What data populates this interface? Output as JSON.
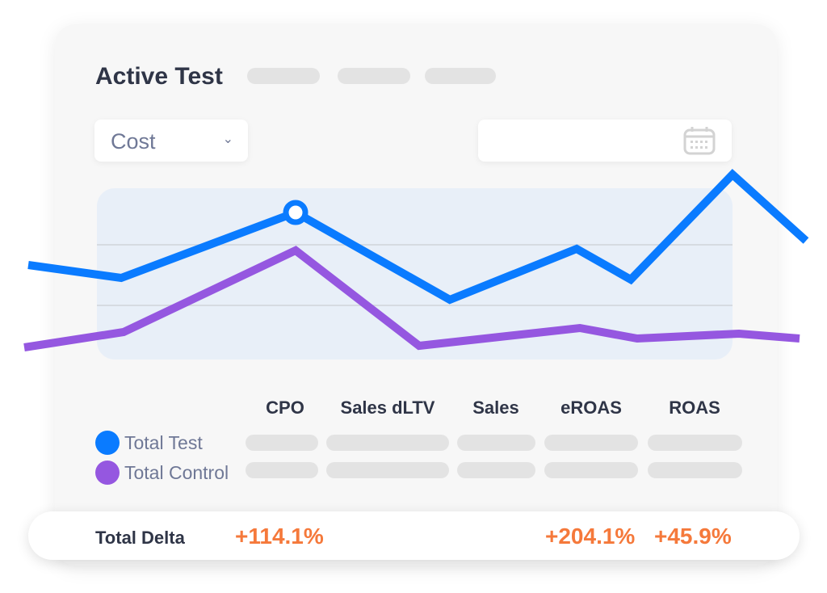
{
  "header": {
    "title": "Active Test"
  },
  "controls": {
    "metric_select": "Cost",
    "chevron_icon": "chevron-down-icon",
    "date_icon": "calendar-icon"
  },
  "colors": {
    "test": "#0a7bff",
    "control": "#9557e0",
    "delta": "#f5793b",
    "chart_bg": "#e8eff8"
  },
  "table": {
    "columns": [
      "CPO",
      "Sales dLTV",
      "Sales",
      "eROAS",
      "ROAS"
    ],
    "rows": [
      {
        "label": "Total Test"
      },
      {
        "label": "Total Control"
      }
    ]
  },
  "delta": {
    "label": "Total Delta",
    "cpo": "+114.1%",
    "eroas": "+204.1%",
    "roas": "+45.9%"
  }
}
